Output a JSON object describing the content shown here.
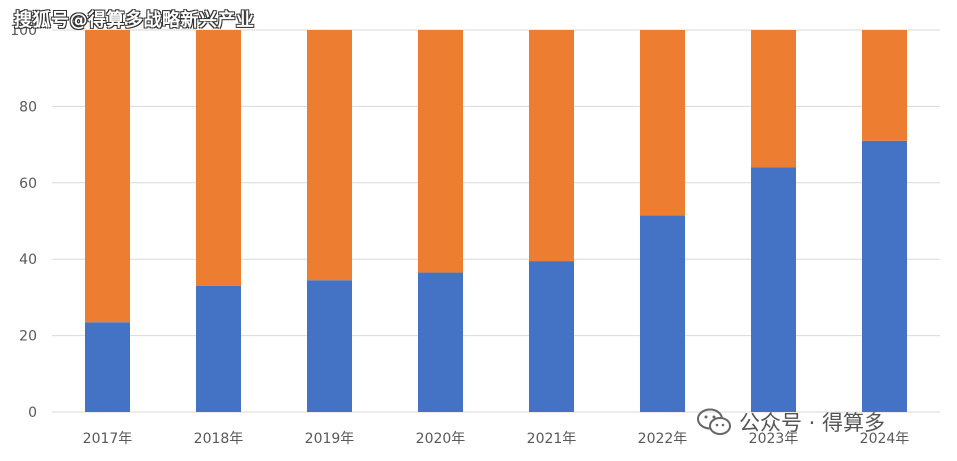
{
  "watermark": {
    "top_text": "搜狐号@得算多战略新兴产业",
    "bottom_text": "公众号 · 得算多",
    "bottom_icon": "wechat-icon"
  },
  "chart_data": {
    "type": "bar",
    "stacked": true,
    "categories": [
      "2017年",
      "2018年",
      "2019年",
      "2020年",
      "2021年",
      "2022年",
      "2023年",
      "2024年"
    ],
    "series": [
      {
        "color": "#4472C4",
        "values": [
          23.5,
          33,
          34.5,
          36.5,
          39.5,
          51.5,
          64,
          71
        ]
      },
      {
        "color": "#ED7D31",
        "values": [
          76.5,
          67,
          65.5,
          63.5,
          60.5,
          48.5,
          36,
          29
        ]
      }
    ],
    "yticks": [
      "0",
      "20",
      "40",
      "60",
      "80",
      "100"
    ],
    "ylim": [
      0,
      100
    ],
    "grid": true,
    "legend": "none"
  }
}
